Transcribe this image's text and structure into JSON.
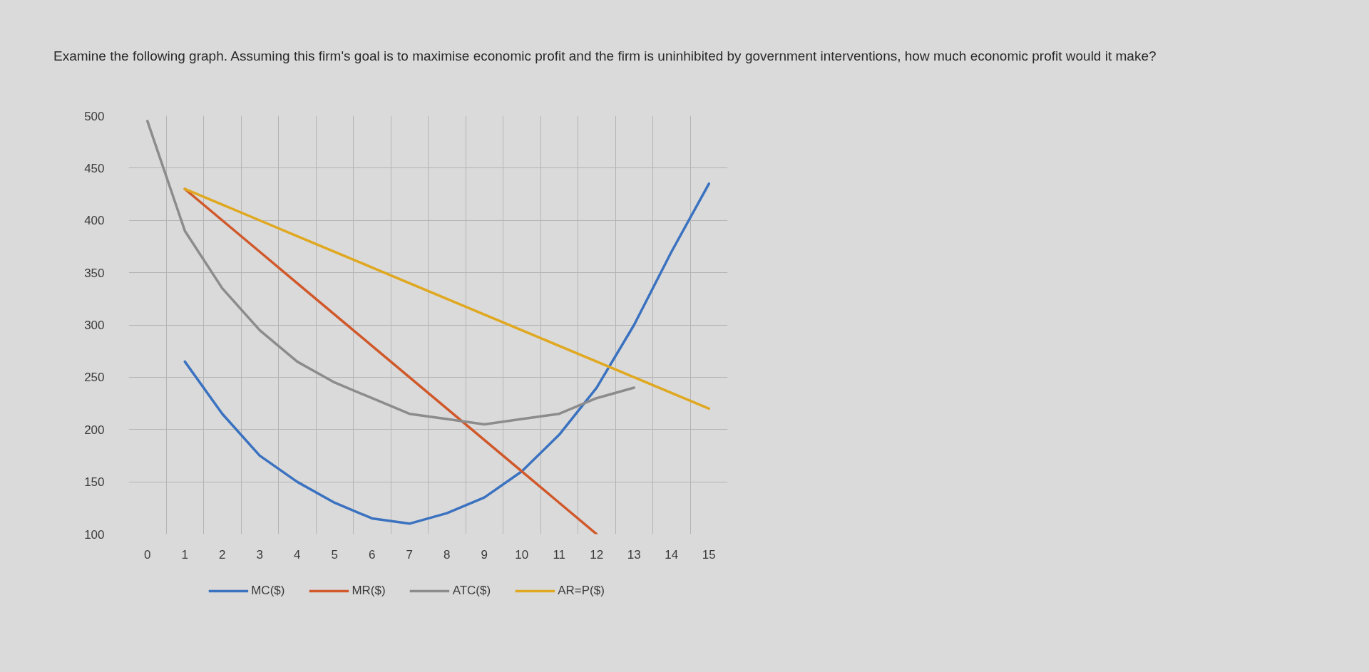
{
  "chart_data": {
    "type": "line",
    "title": "Examine the following graph. Assuming this firm's goal is to maximise economic profit and the firm is uninhibited by government interventions, how much economic profit would it make?",
    "categories": [
      "0",
      "1",
      "2",
      "3",
      "4",
      "5",
      "6",
      "7",
      "8",
      "9",
      "10",
      "11",
      "12",
      "13",
      "14",
      "15"
    ],
    "series": [
      {
        "name": "MC($)",
        "color": "#3b72c0",
        "values": [
          null,
          265,
          215,
          175,
          150,
          130,
          115,
          110,
          120,
          135,
          160,
          195,
          240,
          300,
          370,
          435
        ]
      },
      {
        "name": "MR($)",
        "color": "#d0582a",
        "values": [
          null,
          430,
          400,
          370,
          340,
          310,
          280,
          250,
          220,
          190,
          160,
          130,
          100,
          null,
          null,
          null
        ]
      },
      {
        "name": "ATC($)",
        "color": "#8c8c8c",
        "values": [
          495,
          390,
          335,
          295,
          265,
          245,
          230,
          215,
          210,
          205,
          210,
          215,
          230,
          240,
          null,
          null
        ]
      },
      {
        "name": "AR=P($)",
        "color": "#e0a820",
        "values": [
          null,
          430,
          415,
          400,
          385,
          370,
          355,
          340,
          325,
          310,
          295,
          280,
          265,
          250,
          235,
          220
        ]
      }
    ],
    "ylim": [
      100,
      500
    ],
    "yticks": [
      100,
      150,
      200,
      250,
      300,
      350,
      400,
      450,
      500
    ],
    "grid": true,
    "legend": "bottom"
  }
}
